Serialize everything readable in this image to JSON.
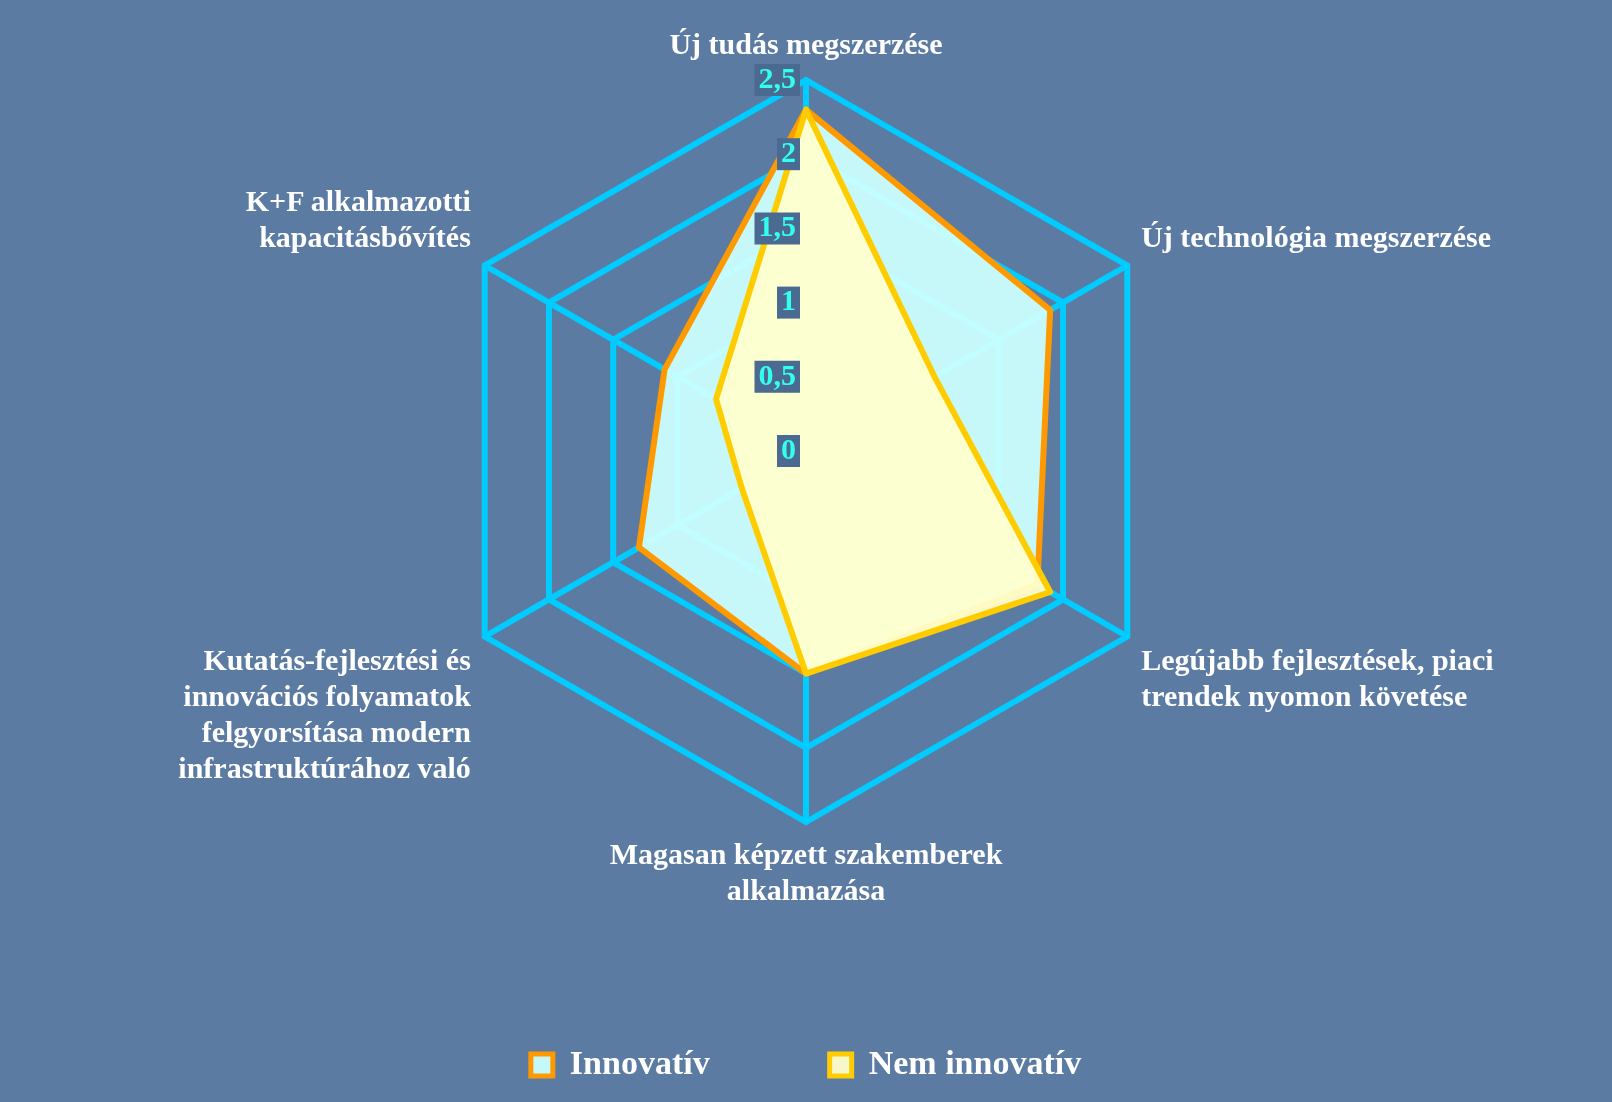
{
  "chart_data": {
    "type": "radar",
    "categories": [
      "Új tudás megszerzése",
      "Új technológia megszerzése",
      "Legújabb fejlesztések, piaci trendek nyomon követése",
      "Magasan képzett szakemberek alkalmazása",
      "Kutatás-fejlesztési és innovációs folyamatok felgyorsítása modern infrastruktúrához való",
      "K+F alkalmazotti kapacitásbővítés"
    ],
    "series": [
      {
        "name": "Innovatív",
        "color": "#ff9900",
        "values": [
          2.3,
          1.9,
          1.8,
          1.5,
          1.3,
          1.1
        ]
      },
      {
        "name": "Nem innovatív",
        "color": "#ffcc00",
        "values": [
          2.3,
          1.0,
          1.9,
          1.5,
          0.5,
          0.7
        ]
      }
    ],
    "ylim": [
      0,
      2.5
    ],
    "yticks": [
      0,
      {
        "value": 0.5,
        "label": "0,5"
      },
      1,
      {
        "value": 1.5,
        "label": "1,5"
      },
      2,
      {
        "value": 2.5,
        "label": "2,5"
      }
    ],
    "grid": true,
    "legend": "bottom",
    "marker": "none"
  }
}
